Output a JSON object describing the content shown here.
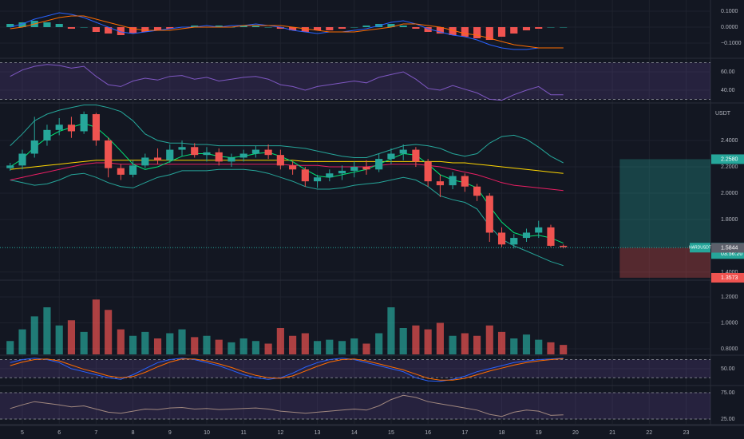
{
  "time_axis": {
    "xlim": [
      4.394,
      23.66
    ],
    "xticks": [
      5,
      6,
      7,
      8,
      9,
      10,
      11,
      12,
      13,
      14,
      15,
      16,
      17,
      18,
      19,
      20,
      21,
      22,
      23
    ],
    "x": [
      4.67,
      5,
      5.33,
      5.67,
      6,
      6.33,
      6.67,
      7,
      7.33,
      7.67,
      8,
      8.33,
      8.67,
      9,
      9.33,
      9.67,
      10,
      10.33,
      10.67,
      11,
      11.33,
      11.67,
      12,
      12.33,
      12.67,
      13,
      13.33,
      13.67,
      14,
      14.33,
      14.67,
      15,
      15.33,
      15.67,
      16,
      16.33,
      16.67,
      17,
      17.33,
      17.67,
      18,
      18.33,
      18.67,
      19,
      19.33,
      19.67
    ]
  },
  "chart_data": [
    {
      "type": "macd",
      "ylim": [
        -0.19,
        0.17
      ],
      "yticks": [
        {
          "value": 0.1,
          "label": "0.1000"
        },
        {
          "value": 0,
          "label": "0.0000"
        },
        {
          "value": -0.1,
          "label": "−0.1000"
        }
      ],
      "pos_color": "#26a69a",
      "neg_color": "#ef5350",
      "values": [
        0.02,
        0.03,
        0.04,
        0.03,
        0.02,
        -0.01,
        0.0,
        -0.03,
        -0.04,
        -0.05,
        -0.04,
        -0.03,
        -0.02,
        -0.01,
        0.0,
        0.01,
        0.0,
        0.01,
        0.0,
        0.01,
        0.01,
        0.0,
        -0.01,
        -0.02,
        -0.03,
        -0.02,
        -0.02,
        -0.01,
        0.0,
        0.01,
        0.02,
        0.02,
        0.01,
        -0.01,
        -0.03,
        -0.04,
        -0.05,
        -0.06,
        -0.07,
        -0.08,
        -0.06,
        -0.04,
        -0.02,
        -0.01,
        0.0,
        0.0
      ],
      "series": [
        {
          "color": "#2962ff",
          "values": [
            0.0,
            0.02,
            0.05,
            0.07,
            0.09,
            0.08,
            0.06,
            0.03,
            0.0,
            -0.03,
            -0.04,
            -0.03,
            -0.02,
            -0.01,
            0.0,
            0.0,
            0.01,
            0.0,
            0.01,
            0.01,
            0.02,
            0.01,
            0.0,
            -0.02,
            -0.03,
            -0.04,
            -0.03,
            -0.03,
            -0.02,
            -0.01,
            0.01,
            0.03,
            0.04,
            0.02,
            -0.01,
            -0.03,
            -0.05,
            -0.06,
            -0.08,
            -0.11,
            -0.13,
            -0.14,
            -0.14,
            -0.13,
            -0.13,
            -0.13
          ]
        },
        {
          "color": "#ff6d00",
          "values": [
            -0.01,
            0.0,
            0.02,
            0.04,
            0.06,
            0.07,
            0.07,
            0.05,
            0.03,
            0.01,
            -0.01,
            -0.02,
            -0.02,
            -0.02,
            -0.01,
            0.0,
            0.0,
            0.0,
            0.0,
            0.01,
            0.01,
            0.01,
            0.01,
            0.0,
            -0.01,
            -0.02,
            -0.03,
            -0.03,
            -0.03,
            -0.02,
            -0.01,
            0.0,
            0.02,
            0.02,
            0.01,
            0.0,
            -0.02,
            -0.04,
            -0.05,
            -0.07,
            -0.09,
            -0.11,
            -0.12,
            -0.13,
            -0.13,
            -0.13
          ]
        }
      ]
    },
    {
      "type": "oscillator",
      "ylim": [
        26.9,
        72.2
      ],
      "yticks": [
        {
          "value": 60,
          "label": "60.00"
        },
        {
          "value": 40,
          "label": "40.00"
        }
      ],
      "bands": [
        30,
        70
      ],
      "series": [
        {
          "color": "#7e57c2",
          "values": [
            55,
            62,
            66,
            68,
            67,
            64,
            66,
            55,
            46,
            44,
            50,
            53,
            51,
            55,
            56,
            52,
            54,
            50,
            52,
            54,
            55,
            52,
            46,
            44,
            40,
            44,
            46,
            48,
            50,
            48,
            54,
            57,
            60,
            52,
            42,
            40,
            45,
            41,
            37,
            30,
            29,
            35,
            40,
            44,
            35,
            35
          ]
        }
      ]
    },
    {
      "type": "candlestick",
      "unit": "USDT",
      "ylim": [
        1.345,
        2.679
      ],
      "up_color": "#26a69a",
      "down_color": "#ef5350",
      "yticks": [
        {
          "value": 2.4,
          "label": "2.4000"
        },
        {
          "value": 2.2,
          "label": "2.2000"
        },
        {
          "value": 2.0,
          "label": "2.0000"
        },
        {
          "value": 1.8,
          "label": "1.8000"
        },
        {
          "value": 1.4,
          "label": "1.4000"
        }
      ],
      "open": [
        2.19,
        2.21,
        2.3,
        2.4,
        2.48,
        2.52,
        2.47,
        2.6,
        2.4,
        2.19,
        2.14,
        2.21,
        2.27,
        2.25,
        2.33,
        2.35,
        2.29,
        2.31,
        2.24,
        2.27,
        2.3,
        2.33,
        2.29,
        2.21,
        2.18,
        2.09,
        2.12,
        2.15,
        2.17,
        2.2,
        2.18,
        2.26,
        2.3,
        2.33,
        2.24,
        2.09,
        2.06,
        2.13,
        2.05,
        1.98,
        1.7,
        1.61,
        1.66,
        1.7,
        1.74,
        1.6
      ],
      "high": [
        2.23,
        2.33,
        2.58,
        2.52,
        2.57,
        2.58,
        2.62,
        2.61,
        2.42,
        2.22,
        2.25,
        2.3,
        2.34,
        2.37,
        2.4,
        2.38,
        2.35,
        2.34,
        2.3,
        2.33,
        2.36,
        2.37,
        2.33,
        2.24,
        2.2,
        2.14,
        2.18,
        2.21,
        2.24,
        2.25,
        2.3,
        2.34,
        2.37,
        2.35,
        2.26,
        2.14,
        2.16,
        2.15,
        2.07,
        2.0,
        1.74,
        1.69,
        1.73,
        1.79,
        1.76,
        1.61
      ],
      "low": [
        2.17,
        2.18,
        2.27,
        2.36,
        2.44,
        2.42,
        2.45,
        2.36,
        2.12,
        2.1,
        2.12,
        2.19,
        2.22,
        2.23,
        2.28,
        2.27,
        2.24,
        2.21,
        2.2,
        2.24,
        2.27,
        2.26,
        2.18,
        2.14,
        2.05,
        2.04,
        2.09,
        2.1,
        2.12,
        2.14,
        2.16,
        2.22,
        2.25,
        2.2,
        2.05,
        1.97,
        2.03,
        2.01,
        1.94,
        1.63,
        1.59,
        1.58,
        1.63,
        1.66,
        1.59,
        1.58
      ],
      "close": [
        2.21,
        2.3,
        2.4,
        2.48,
        2.52,
        2.47,
        2.6,
        2.4,
        2.19,
        2.14,
        2.21,
        2.27,
        2.25,
        2.33,
        2.35,
        2.29,
        2.31,
        2.24,
        2.27,
        2.3,
        2.33,
        2.29,
        2.21,
        2.18,
        2.09,
        2.12,
        2.15,
        2.17,
        2.2,
        2.18,
        2.26,
        2.3,
        2.33,
        2.24,
        2.09,
        2.06,
        2.13,
        2.05,
        1.98,
        1.7,
        1.61,
        1.66,
        1.7,
        1.74,
        1.6,
        1.59
      ],
      "series": [
        {
          "color": "#26a69a",
          "values": [
            2.36,
            2.45,
            2.55,
            2.6,
            2.63,
            2.65,
            2.67,
            2.67,
            2.65,
            2.62,
            2.55,
            2.45,
            2.4,
            2.38,
            2.38,
            2.37,
            2.37,
            2.36,
            2.36,
            2.36,
            2.36,
            2.36,
            2.36,
            2.35,
            2.34,
            2.32,
            2.3,
            2.28,
            2.27,
            2.27,
            2.3,
            2.33,
            2.36,
            2.37,
            2.36,
            2.34,
            2.3,
            2.28,
            2.3,
            2.38,
            2.43,
            2.44,
            2.41,
            2.35,
            2.28,
            2.23
          ]
        },
        {
          "color": "#26a69a",
          "values": [
            2.1,
            2.08,
            2.06,
            2.07,
            2.1,
            2.14,
            2.15,
            2.12,
            2.08,
            2.05,
            2.04,
            2.08,
            2.12,
            2.14,
            2.17,
            2.17,
            2.17,
            2.18,
            2.18,
            2.18,
            2.17,
            2.15,
            2.12,
            2.09,
            2.05,
            2.03,
            2.03,
            2.04,
            2.06,
            2.07,
            2.08,
            2.1,
            2.12,
            2.1,
            2.05,
            1.98,
            1.95,
            1.93,
            1.88,
            1.75,
            1.65,
            1.6,
            1.56,
            1.52,
            1.48,
            1.45
          ]
        },
        {
          "color": "#e91e63",
          "values": [
            2.1,
            2.12,
            2.14,
            2.16,
            2.18,
            2.2,
            2.22,
            2.23,
            2.23,
            2.22,
            2.22,
            2.22,
            2.22,
            2.22,
            2.22,
            2.22,
            2.22,
            2.22,
            2.22,
            2.22,
            2.22,
            2.22,
            2.22,
            2.21,
            2.21,
            2.21,
            2.2,
            2.2,
            2.2,
            2.2,
            2.21,
            2.22,
            2.22,
            2.22,
            2.21,
            2.2,
            2.18,
            2.16,
            2.14,
            2.11,
            2.08,
            2.06,
            2.05,
            2.04,
            2.03,
            2.02
          ]
        },
        {
          "color": "#ffd600",
          "values": [
            2.18,
            2.19,
            2.2,
            2.21,
            2.22,
            2.23,
            2.24,
            2.25,
            2.25,
            2.25,
            2.25,
            2.25,
            2.25,
            2.25,
            2.25,
            2.25,
            2.25,
            2.25,
            2.25,
            2.25,
            2.25,
            2.25,
            2.25,
            2.25,
            2.24,
            2.24,
            2.24,
            2.24,
            2.24,
            2.24,
            2.24,
            2.24,
            2.24,
            2.24,
            2.24,
            2.24,
            2.23,
            2.23,
            2.22,
            2.21,
            2.2,
            2.19,
            2.18,
            2.17,
            2.16,
            2.15
          ]
        },
        {
          "color": "#00e676",
          "values": [
            2.2,
            2.26,
            2.35,
            2.42,
            2.47,
            2.5,
            2.53,
            2.5,
            2.42,
            2.32,
            2.22,
            2.18,
            2.2,
            2.24,
            2.28,
            2.3,
            2.3,
            2.28,
            2.27,
            2.28,
            2.3,
            2.31,
            2.28,
            2.24,
            2.18,
            2.13,
            2.12,
            2.14,
            2.16,
            2.18,
            2.22,
            2.26,
            2.3,
            2.29,
            2.22,
            2.14,
            2.1,
            2.08,
            2.04,
            1.9,
            1.78,
            1.7,
            1.67,
            1.68,
            1.66,
            1.62
          ]
        }
      ],
      "position": {
        "x": [
          21.2,
          23.66
        ],
        "target": 2.258,
        "entry": 1.5858,
        "stop": 1.3573
      },
      "price_labels": [
        {
          "value": 2.258,
          "label": "2.2580",
          "color": "#26a69a"
        },
        {
          "value": 1.5858,
          "label": "1.5858",
          "symbol": "HARDUSDT",
          "countdown": "03:56:20",
          "color": "#26a69a"
        },
        {
          "value": 1.5844,
          "label": "1.5844",
          "color": "#5d606b"
        },
        {
          "value": 1.3573,
          "label": "1.3573",
          "color": "#ef5350"
        }
      ]
    },
    {
      "type": "volume",
      "ylim": [
        0.757,
        1.323
      ],
      "yticks": [
        {
          "value": 1.2,
          "label": "1.2000"
        },
        {
          "value": 1.0,
          "label": "1.0000"
        },
        {
          "value": 0.8,
          "label": "0.8000"
        }
      ],
      "values": [
        0.86,
        0.95,
        1.05,
        1.12,
        0.98,
        1.02,
        0.93,
        1.18,
        1.1,
        0.95,
        0.9,
        0.93,
        0.88,
        0.92,
        0.95,
        0.89,
        0.9,
        0.87,
        0.85,
        0.88,
        0.86,
        0.84,
        0.96,
        0.9,
        0.92,
        0.86,
        0.87,
        0.86,
        0.88,
        0.84,
        0.92,
        1.12,
        0.96,
        0.98,
        0.95,
        1.0,
        0.9,
        0.92,
        0.9,
        0.98,
        0.93,
        0.88,
        0.91,
        0.87,
        0.85,
        0.83
      ]
    },
    {
      "type": "oscillator",
      "ylim": [
        -3,
        92
      ],
      "yticks": [
        {
          "value": 50,
          "label": "50.00"
        }
      ],
      "bands": [
        20,
        80
      ],
      "series": [
        {
          "color": "#2962ff",
          "values": [
            70,
            80,
            85,
            80,
            70,
            50,
            40,
            30,
            20,
            15,
            30,
            50,
            70,
            80,
            85,
            80,
            70,
            60,
            45,
            30,
            20,
            15,
            20,
            35,
            55,
            70,
            80,
            85,
            80,
            70,
            60,
            50,
            40,
            20,
            10,
            8,
            15,
            25,
            40,
            50,
            60,
            70,
            75,
            80,
            82,
            85
          ]
        },
        {
          "color": "#ff6d00",
          "values": [
            60,
            72,
            80,
            82,
            76,
            62,
            48,
            38,
            26,
            20,
            24,
            38,
            56,
            72,
            82,
            82,
            76,
            66,
            54,
            40,
            28,
            20,
            18,
            26,
            42,
            58,
            72,
            80,
            82,
            76,
            66,
            56,
            46,
            32,
            18,
            12,
            12,
            18,
            30,
            42,
            52,
            62,
            70,
            76,
            80,
            83
          ]
        }
      ]
    },
    {
      "type": "oscillator",
      "ylim": [
        14.4,
        87.1
      ],
      "yticks": [
        {
          "value": 75,
          "label": "75.00"
        },
        {
          "value": 25,
          "label": "25.00"
        }
      ],
      "bands": [
        25,
        75
      ],
      "series": [
        {
          "color": "#a1887f",
          "values": [
            45,
            52,
            58,
            55,
            52,
            48,
            50,
            44,
            38,
            36,
            40,
            44,
            43,
            46,
            47,
            44,
            45,
            43,
            44,
            45,
            46,
            44,
            40,
            38,
            36,
            38,
            40,
            42,
            44,
            42,
            50,
            62,
            70,
            66,
            58,
            54,
            50,
            46,
            42,
            34,
            30,
            38,
            42,
            40,
            32,
            33
          ]
        }
      ]
    }
  ]
}
